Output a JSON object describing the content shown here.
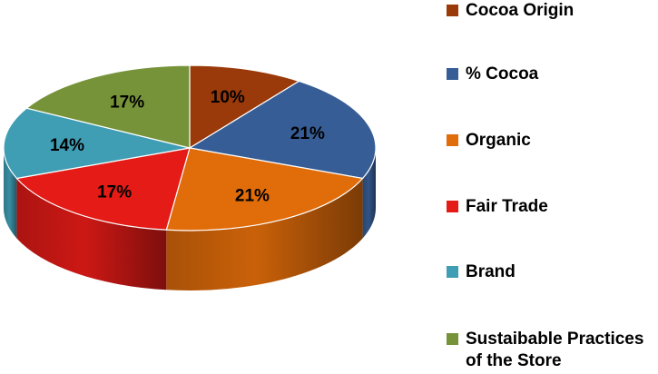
{
  "chart_data": {
    "type": "pie",
    "style": "3d",
    "legend_position": "right",
    "slices": [
      {
        "label": "Cocoa Origin",
        "value": 10,
        "display": "10%",
        "color": "#9a3a0a"
      },
      {
        "label": "% Cocoa",
        "value": 21,
        "display": "21%",
        "color": "#365d95"
      },
      {
        "label": "Organic",
        "value": 21,
        "display": "21%",
        "color": "#e06c0a"
      },
      {
        "label": "Fair Trade",
        "value": 17,
        "display": "17%",
        "color": "#e41b17"
      },
      {
        "label": "Brand",
        "value": 14,
        "display": "14%",
        "color": "#3f9db4"
      },
      {
        "label": "Sustaibable Practices\nof the Store",
        "value": 17,
        "display": "17%",
        "color": "#76933a"
      }
    ]
  }
}
